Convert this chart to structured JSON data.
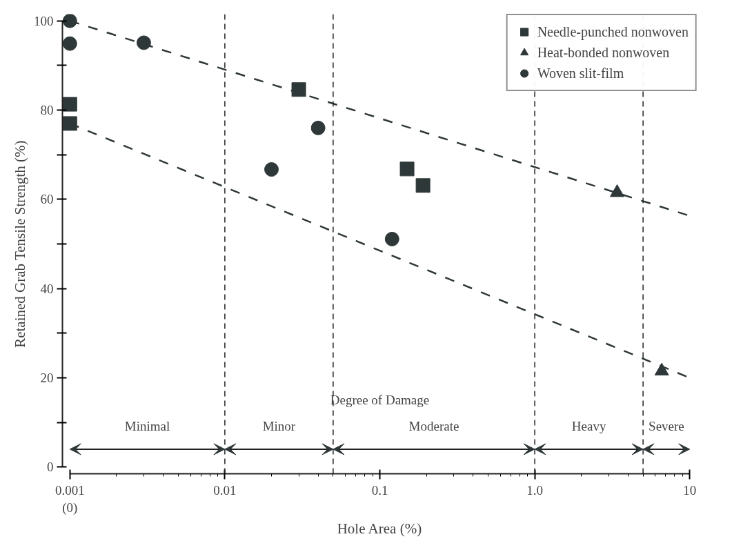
{
  "chart_data": {
    "type": "scatter",
    "xlabel": "Hole Area (%)",
    "ylabel": "Retained Grab Tensile Strength (%)",
    "log": "x",
    "xlim": [
      0.001,
      10
    ],
    "ylim": [
      0,
      100
    ],
    "xticks": [
      {
        "value": 0.001,
        "label": "0.001\n(0)"
      },
      0.01,
      0.1,
      {
        "value": 1,
        "label": "1.0"
      },
      10
    ],
    "yticks": [
      0,
      {
        "value": 10,
        "label": null
      },
      20,
      {
        "value": 30,
        "label": null
      },
      40,
      {
        "value": 50,
        "label": null
      },
      60,
      {
        "value": 70,
        "label": null
      },
      80,
      {
        "value": 90,
        "label": null
      },
      100
    ],
    "grid": false,
    "legend": "top right",
    "series": [
      {
        "name": "Needle-punched nonwoven",
        "color": "#2f3838",
        "marker": "square",
        "x": [
          0.001,
          0.001,
          0.03,
          0.15,
          0.19
        ],
        "values": [
          81.3,
          77.0,
          84.6,
          66.8,
          63.1
        ]
      },
      {
        "name": "Heat-bonded nonwoven",
        "color": "#2f3838",
        "marker": "triangle",
        "x": [
          3.4,
          6.6
        ],
        "values": [
          61.5,
          21.5
        ]
      },
      {
        "name": "Woven slit-film",
        "color": "#2f3838",
        "marker": "circle",
        "x": [
          0.001,
          0.001,
          0.003,
          0.04,
          0.02,
          0.12
        ],
        "values": [
          100,
          94.9,
          95.1,
          76.0,
          66.7,
          51.1
        ]
      },
      {
        "type": "line",
        "color": "#2f3838",
        "line_style": "dashed",
        "x": [
          0.001,
          10
        ],
        "values": [
          100,
          56.3
        ]
      },
      {
        "type": "line",
        "color": "#2f3838",
        "line_style": "dashed",
        "x": [
          0.001,
          10
        ],
        "values": [
          77,
          20
        ]
      }
    ],
    "ref_lines": [
      {
        "axis": "x",
        "value": 0.01,
        "color": "#222222",
        "line_style": "dashed"
      },
      {
        "axis": "x",
        "value": 0.05,
        "color": "#222222",
        "line_style": "dashed"
      },
      {
        "axis": "x",
        "value": 1,
        "color": "#222222",
        "line_style": "dashed"
      },
      {
        "axis": "x",
        "value": 5,
        "color": "#222222",
        "line_style": "dashed"
      }
    ],
    "annotations": [
      "Degree of Damage",
      "Minimal",
      "Minor",
      "Moderate",
      "Heavy",
      "Severe"
    ]
  }
}
